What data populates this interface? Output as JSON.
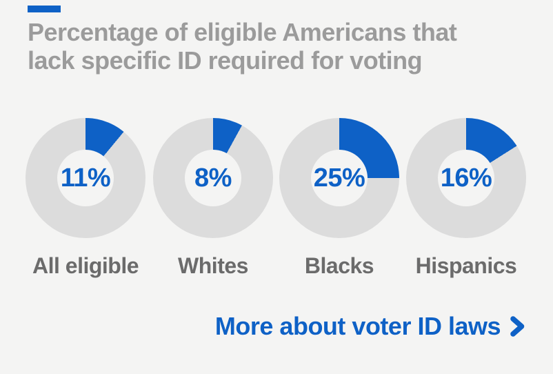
{
  "colors": {
    "background": "#f4f4f3",
    "accent_blue": "#0e61c6",
    "title_gray": "#9b9b9b",
    "label_gray": "#6b6b6b",
    "ring_gray": "#dcdcdc"
  },
  "header": {
    "title_line1": "Percentage of eligible Americans that",
    "title_line2": "lack specific ID required for voting"
  },
  "chart_data": {
    "type": "pie",
    "subtype": "donut",
    "title": "Percentage of eligible Americans that lack specific ID required for voting",
    "categories": [
      "All eligible",
      "Whites",
      "Blacks",
      "Hispanics"
    ],
    "values": [
      11,
      8,
      25,
      16
    ],
    "value_labels": [
      "11%",
      "8%",
      "25%",
      "16%"
    ],
    "segment_color": "#0e61c6",
    "track_color": "#dcdcdc",
    "start_angle_deg": 0,
    "direction": "clockwise",
    "value_range": [
      0,
      100
    ],
    "legend_position": "label-below-each-donut"
  },
  "footer": {
    "link_label": "More about voter ID laws",
    "chevron_icon": "chevron-right"
  }
}
